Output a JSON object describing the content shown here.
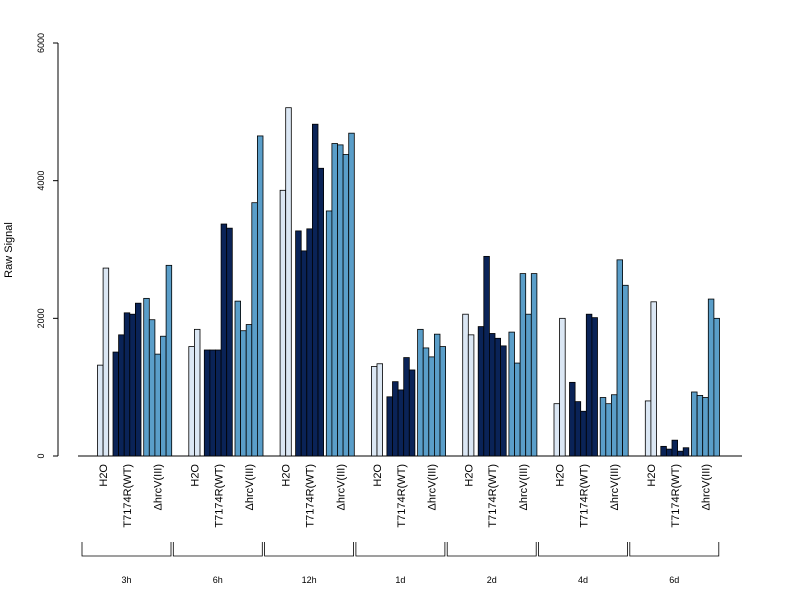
{
  "chart_data": {
    "type": "bar",
    "ylabel": "Raw Signal",
    "ylim": [
      0,
      6000
    ],
    "yticks": [
      0,
      2000,
      4000,
      6000
    ],
    "grid": false,
    "legend": "none",
    "groups": [
      "3h",
      "6h",
      "12h",
      "1d",
      "2d",
      "4d",
      "6d"
    ],
    "categories": [
      "H2O",
      "T7174R(WT)",
      "ΔhrcV(III)"
    ],
    "colors": {
      "H2O": "#dbe7f4",
      "T7174R(WT)": "#0a2357",
      "ΔhrcV(III)": "#5a9ec9"
    },
    "series": [
      {
        "group": "3h",
        "H2O": [
          1320,
          2730
        ],
        "T7174R(WT)": [
          1510,
          1760,
          2080,
          2060,
          2220
        ],
        "ΔhrcV(III)": [
          2290,
          1980,
          1480,
          1740,
          2770
        ]
      },
      {
        "group": "6h",
        "H2O": [
          1590,
          1840
        ],
        "T7174R(WT)": [
          1540,
          1540,
          1540,
          3370,
          3310
        ],
        "ΔhrcV(III)": [
          2250,
          1820,
          1910,
          3680,
          4650
        ]
      },
      {
        "group": "12h",
        "H2O": [
          3860,
          5060
        ],
        "T7174R(WT)": [
          3270,
          2980,
          3300,
          4820,
          4180
        ],
        "ΔhrcV(III)": [
          3560,
          4540,
          4520,
          4380,
          4690
        ]
      },
      {
        "group": "1d",
        "H2O": [
          1300,
          1340
        ],
        "T7174R(WT)": [
          860,
          1080,
          960,
          1430,
          1250
        ],
        "ΔhrcV(III)": [
          1840,
          1570,
          1440,
          1770,
          1590
        ]
      },
      {
        "group": "2d",
        "H2O": [
          2060,
          1760
        ],
        "T7174R(WT)": [
          1880,
          2900,
          1780,
          1710,
          1600
        ],
        "ΔhrcV(III)": [
          1800,
          1350,
          2650,
          2060,
          2650
        ]
      },
      {
        "group": "4d",
        "H2O": [
          760,
          2000
        ],
        "T7174R(WT)": [
          1070,
          790,
          650,
          2060,
          2010
        ],
        "ΔhrcV(III)": [
          850,
          760,
          890,
          2850,
          2480
        ]
      },
      {
        "group": "6d",
        "H2O": [
          800,
          2240
        ],
        "T7174R(WT)": [
          140,
          100,
          230,
          70,
          120
        ],
        "ΔhrcV(III)": [
          930,
          880,
          850,
          2280,
          2000
        ]
      }
    ]
  }
}
